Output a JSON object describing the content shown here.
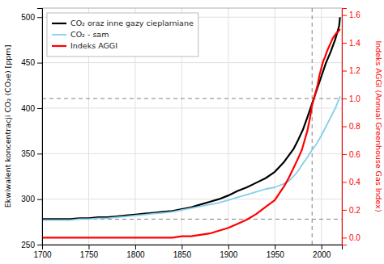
{
  "chart_data": {
    "type": "line",
    "y_label": "Ekwiwalent koncentracji CO₂ (CO₂e) [ppm]",
    "y2_label": "Indeks AGGI (Annual Greenhouse Gas Index)",
    "xlim": [
      1700,
      2022
    ],
    "xticks": [
      1700,
      1750,
      1800,
      1850,
      1900,
      1950,
      2000
    ],
    "ylim": [
      250,
      510
    ],
    "yticks": [
      250,
      300,
      350,
      400,
      450,
      500
    ],
    "y2lim": [
      -0.05,
      1.65
    ],
    "y2ticks": [
      {
        "value": 0.0,
        "label": "0.0"
      },
      0.2,
      0.4,
      0.6,
      0.8,
      {
        "value": 1.0,
        "label": "1.0"
      },
      1.2,
      1.4,
      1.6
    ],
    "grid": true,
    "legend": "upper left",
    "series": [
      {
        "name": "CO₂ oraz inne gazy cieplarniane",
        "color": "black",
        "axis": "y",
        "x": [
          1700,
          1710,
          1720,
          1730,
          1740,
          1750,
          1760,
          1770,
          1780,
          1790,
          1800,
          1810,
          1820,
          1830,
          1840,
          1850,
          1860,
          1870,
          1880,
          1890,
          1900,
          1910,
          1920,
          1930,
          1940,
          1950,
          1960,
          1970,
          1975,
          1980,
          1985,
          1990,
          1995,
          2000,
          2005,
          2010,
          2015,
          2019,
          2020
        ],
        "values": [
          278,
          278,
          278,
          278,
          279,
          279,
          280,
          280,
          281,
          282,
          283,
          284,
          285,
          286,
          287,
          289,
          291,
          294,
          297,
          300,
          304,
          309,
          313,
          318,
          323,
          330,
          341,
          355,
          365,
          376,
          390,
          405,
          420,
          435,
          450,
          462,
          476,
          490,
          500
        ]
      },
      {
        "name": "CO₂ - sam",
        "color": "#87CEEB",
        "axis": "y",
        "x": [
          1700,
          1710,
          1720,
          1730,
          1740,
          1750,
          1760,
          1770,
          1780,
          1790,
          1800,
          1810,
          1820,
          1830,
          1840,
          1850,
          1860,
          1870,
          1880,
          1890,
          1900,
          1910,
          1920,
          1930,
          1940,
          1950,
          1960,
          1965,
          1970,
          1975,
          1980,
          1985,
          1990,
          1995,
          2000,
          2005,
          2010,
          2015,
          2019,
          2020
        ],
        "values": [
          277,
          277,
          277,
          277,
          278,
          278,
          279,
          279,
          280,
          281,
          282,
          283,
          284,
          285,
          286,
          288,
          290,
          292,
          294,
          296,
          299,
          302,
          305,
          308,
          311,
          313,
          317,
          320,
          325,
          331,
          339,
          346,
          354,
          361,
          370,
          380,
          390,
          400,
          410,
          413
        ]
      },
      {
        "name": "Indeks AGGI",
        "color": "red",
        "axis": "y2",
        "x": [
          1700,
          1710,
          1720,
          1730,
          1740,
          1750,
          1760,
          1770,
          1780,
          1790,
          1800,
          1810,
          1820,
          1830,
          1840,
          1850,
          1860,
          1870,
          1880,
          1890,
          1900,
          1910,
          1920,
          1930,
          1940,
          1950,
          1955,
          1960,
          1965,
          1970,
          1975,
          1979,
          1982,
          1985,
          1988,
          1990,
          1992,
          1994,
          1996,
          1998,
          2000,
          2002,
          2004,
          2006,
          2008,
          2010,
          2012,
          2014,
          2016,
          2018,
          2020
        ],
        "values": [
          0.0,
          0.0,
          0.0,
          0.0,
          0.0,
          0.0,
          0.0,
          0.0,
          0.0,
          0.0,
          0.0,
          0.0,
          0.0,
          0.0,
          0.0,
          0.01,
          0.01,
          0.02,
          0.03,
          0.05,
          0.07,
          0.1,
          0.13,
          0.17,
          0.22,
          0.27,
          0.32,
          0.37,
          0.43,
          0.5,
          0.57,
          0.63,
          0.7,
          0.77,
          0.87,
          0.95,
          1.0,
          1.05,
          1.1,
          1.17,
          1.22,
          1.27,
          1.3,
          1.34,
          1.37,
          1.4,
          1.43,
          1.45,
          1.47,
          1.48,
          1.5
        ]
      }
    ],
    "reference_lines": [
      {
        "axis": "y",
        "value": 278,
        "color": "#808080",
        "line_style": "dashed"
      },
      {
        "axis": "x",
        "value": 1990,
        "color": "#808080",
        "line_style": "dashed"
      },
      {
        "axis": "y2",
        "value": 1.0,
        "color": "#808080",
        "line_style": "dashed"
      }
    ]
  }
}
